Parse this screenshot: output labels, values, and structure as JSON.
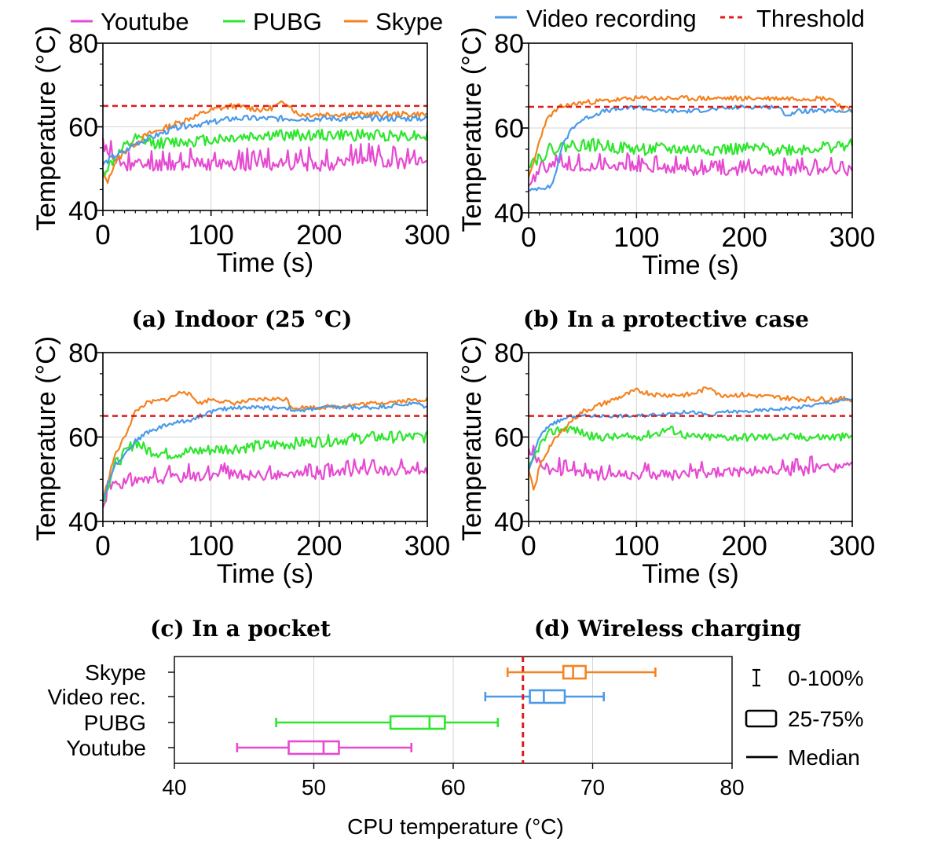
{
  "legend": {
    "items": [
      {
        "label": "Youtube",
        "color": "#e64ad2"
      },
      {
        "label": "PUBG",
        "color": "#2ee62e"
      },
      {
        "label": "Skype",
        "color": "#f5821f"
      },
      {
        "label": "Video recording",
        "color": "#4a9ae8"
      },
      {
        "label": "Threshold",
        "color": "#e01b1b",
        "style": "dashed"
      }
    ]
  },
  "chart_data": [
    {
      "type": "line",
      "caption": "(a) Indoor (25 °C)",
      "xlabel": "Time (s)",
      "ylabel": "Temperature (°C)",
      "xlim": [
        0,
        300
      ],
      "ylim": [
        40,
        80
      ],
      "xticks": [
        "0",
        "100",
        "200",
        "300"
      ],
      "yticks": [
        "40",
        "60",
        "80"
      ],
      "grid": true,
      "threshold": 65,
      "series": [
        {
          "name": "Youtube",
          "color": "#e64ad2",
          "x": [
            0,
            10,
            20,
            40,
            60,
            100,
            150,
            200,
            250,
            300
          ],
          "y": [
            56,
            52,
            51,
            51,
            51,
            51,
            51,
            51,
            52,
            51
          ],
          "noise": 1.6,
          "seed": 11
        },
        {
          "name": "PUBG",
          "color": "#2ee62e",
          "x": [
            0,
            10,
            20,
            30,
            50,
            100,
            150,
            200,
            250,
            300
          ],
          "y": [
            49,
            52,
            55,
            57,
            56,
            57,
            58,
            58,
            58,
            58
          ],
          "noise": 1.4,
          "seed": 12
        },
        {
          "name": "Skype",
          "color": "#f5821f",
          "x": [
            0,
            5,
            10,
            20,
            40,
            60,
            80,
            100,
            120,
            150,
            170,
            180,
            200,
            250,
            300
          ],
          "y": [
            48,
            47,
            51,
            54,
            58,
            60,
            62,
            64,
            65,
            64,
            66,
            63,
            63,
            63,
            63
          ],
          "noise": 0.7,
          "seed": 13
        },
        {
          "name": "Video recording",
          "color": "#4a9ae8",
          "x": [
            0,
            10,
            20,
            30,
            50,
            70,
            100,
            120,
            150,
            200,
            250,
            300
          ],
          "y": [
            51,
            53,
            54,
            56,
            58,
            60,
            61,
            62,
            62,
            62,
            62,
            62
          ],
          "noise": 0.7,
          "seed": 14
        }
      ]
    },
    {
      "type": "line",
      "caption": "(b) In a protective case",
      "xlabel": "Time (s)",
      "ylabel": "Temperature (°C)",
      "xlim": [
        0,
        300
      ],
      "ylim": [
        40,
        80
      ],
      "xticks": [
        "0",
        "100",
        "200",
        "300"
      ],
      "yticks": [
        "40",
        "60",
        "80"
      ],
      "grid": true,
      "threshold": 65,
      "series": [
        {
          "name": "Youtube",
          "color": "#e64ad2",
          "x": [
            0,
            10,
            20,
            40,
            60,
            100,
            150,
            200,
            250,
            300
          ],
          "y": [
            47,
            49,
            51,
            51,
            51,
            51,
            50,
            50,
            50,
            50
          ],
          "noise": 1.2,
          "seed": 21
        },
        {
          "name": "PUBG",
          "color": "#2ee62e",
          "x": [
            0,
            10,
            20,
            40,
            60,
            100,
            150,
            200,
            250,
            300
          ],
          "y": [
            52,
            53,
            55,
            56,
            56,
            55,
            55,
            55,
            55,
            56
          ],
          "noise": 1.5,
          "seed": 22
        },
        {
          "name": "Skype",
          "color": "#f5821f",
          "x": [
            0,
            5,
            10,
            15,
            20,
            30,
            50,
            100,
            150,
            200,
            250,
            280,
            290,
            300
          ],
          "y": [
            48,
            52,
            57,
            61,
            63,
            65,
            66,
            67,
            67,
            67,
            67,
            67,
            65,
            64
          ],
          "noise": 0.6,
          "seed": 23
        },
        {
          "name": "Video recording",
          "color": "#4a9ae8",
          "x": [
            0,
            10,
            20,
            25,
            30,
            40,
            50,
            70,
            100,
            120,
            150,
            200,
            230,
            240,
            250,
            300
          ],
          "y": [
            45,
            46,
            46,
            49,
            55,
            60,
            62,
            64,
            65,
            64,
            64,
            65,
            65,
            63,
            64,
            64
          ],
          "noise": 0.5,
          "seed": 24
        }
      ]
    },
    {
      "type": "line",
      "caption": "(c) In a pocket",
      "xlabel": "Time (s)",
      "ylabel": "Temperature (°C)",
      "xlim": [
        0,
        300
      ],
      "ylim": [
        40,
        80
      ],
      "xticks": [
        "0",
        "100",
        "200",
        "300"
      ],
      "yticks": [
        "40",
        "60",
        "80"
      ],
      "grid": true,
      "threshold": 65,
      "series": [
        {
          "name": "Youtube",
          "color": "#e64ad2",
          "x": [
            0,
            5,
            10,
            20,
            50,
            100,
            150,
            200,
            250,
            300
          ],
          "y": [
            43,
            48,
            49,
            49,
            50,
            51,
            51,
            51,
            52,
            52
          ],
          "noise": 1.2,
          "seed": 31
        },
        {
          "name": "PUBG",
          "color": "#2ee62e",
          "x": [
            0,
            10,
            20,
            30,
            40,
            60,
            100,
            150,
            200,
            250,
            300
          ],
          "y": [
            45,
            53,
            56,
            59,
            57,
            56,
            57,
            58,
            59,
            60,
            60
          ],
          "noise": 1.4,
          "seed": 32
        },
        {
          "name": "Skype",
          "color": "#f5821f",
          "x": [
            0,
            10,
            20,
            30,
            40,
            60,
            75,
            90,
            100,
            120,
            150,
            170,
            175,
            200,
            250,
            300
          ],
          "y": [
            45,
            55,
            60,
            66,
            68,
            69,
            71,
            68,
            69,
            68,
            69,
            69,
            67,
            67,
            68,
            69
          ],
          "noise": 0.5,
          "seed": 33
        },
        {
          "name": "Video recording",
          "color": "#4a9ae8",
          "x": [
            0,
            10,
            20,
            30,
            40,
            60,
            80,
            100,
            120,
            150,
            170,
            180,
            200,
            250,
            290,
            300
          ],
          "y": [
            45,
            53,
            56,
            59,
            61,
            63,
            64,
            66,
            67,
            67,
            67,
            66,
            67,
            67,
            68,
            67
          ],
          "noise": 0.5,
          "seed": 34
        }
      ]
    },
    {
      "type": "line",
      "caption": "(d) Wireless charging",
      "xlabel": "Time (s)",
      "ylabel": "Temperature (°C)",
      "xlim": [
        0,
        300
      ],
      "ylim": [
        40,
        80
      ],
      "xticks": [
        "0",
        "100",
        "200",
        "300"
      ],
      "yticks": [
        "40",
        "60",
        "80"
      ],
      "grid": true,
      "threshold": 65,
      "series": [
        {
          "name": "Youtube",
          "color": "#e64ad2",
          "x": [
            0,
            10,
            20,
            40,
            60,
            100,
            150,
            200,
            250,
            300
          ],
          "y": [
            56,
            54,
            52,
            52,
            51,
            51,
            51,
            52,
            52,
            53
          ],
          "noise": 1.3,
          "seed": 41
        },
        {
          "name": "PUBG",
          "color": "#2ee62e",
          "x": [
            0,
            10,
            20,
            30,
            40,
            60,
            100,
            120,
            130,
            150,
            200,
            250,
            300
          ],
          "y": [
            52,
            58,
            61,
            62,
            62,
            60,
            60,
            61,
            62,
            60,
            60,
            60,
            60
          ],
          "noise": 1.0,
          "seed": 42
        },
        {
          "name": "Skype",
          "color": "#f5821f",
          "x": [
            0,
            5,
            10,
            20,
            30,
            40,
            50,
            60,
            80,
            100,
            120,
            150,
            170,
            175,
            200,
            250,
            300
          ],
          "y": [
            52,
            47,
            53,
            58,
            61,
            64,
            66,
            67,
            69,
            71,
            70,
            70,
            72,
            70,
            70,
            69,
            69
          ],
          "noise": 0.6,
          "seed": 43
        },
        {
          "name": "Video recording",
          "color": "#4a9ae8",
          "x": [
            0,
            5,
            10,
            20,
            30,
            40,
            60,
            100,
            150,
            170,
            180,
            200,
            250,
            300
          ],
          "y": [
            52,
            56,
            60,
            63,
            64,
            65,
            65,
            65,
            66,
            65,
            66,
            66,
            67,
            69
          ],
          "noise": 0.4,
          "seed": 44
        }
      ]
    },
    {
      "type": "box",
      "xlabel": "CPU temperature (°C)",
      "xlim": [
        40,
        80
      ],
      "xticks": [
        "40",
        "50",
        "60",
        "70",
        "80"
      ],
      "threshold": 65,
      "grid": true,
      "categories": [
        "Skype",
        "Video rec.",
        "PUBG",
        "Youtube"
      ],
      "boxes": [
        {
          "name": "Skype",
          "color": "#f5821f",
          "min": 63.9,
          "q1": 67.9,
          "median": 68.6,
          "q3": 69.5,
          "max": 74.5
        },
        {
          "name": "Video rec.",
          "color": "#4a9ae8",
          "min": 62.3,
          "q1": 65.5,
          "median": 66.5,
          "q3": 68.0,
          "max": 70.8
        },
        {
          "name": "PUBG",
          "color": "#2ee62e",
          "min": 47.3,
          "q1": 55.5,
          "median": 58.3,
          "q3": 59.4,
          "max": 63.2
        },
        {
          "name": "Youtube",
          "color": "#e64ad2",
          "min": 44.5,
          "q1": 48.2,
          "median": 50.7,
          "q3": 51.8,
          "max": 57.0
        }
      ],
      "legend": [
        {
          "label": "0-100%",
          "icon": "whisker-icon"
        },
        {
          "label": "25-75%",
          "icon": "box-icon"
        },
        {
          "label": "Median",
          "icon": "median-icon"
        }
      ]
    }
  ]
}
